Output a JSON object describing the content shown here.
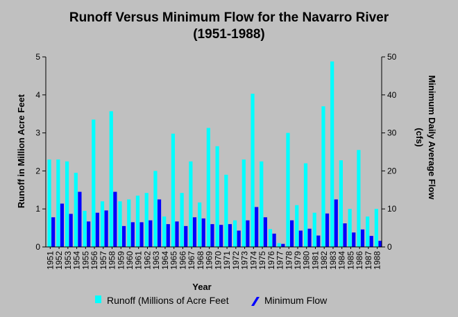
{
  "chart_data": {
    "type": "bar",
    "title_line1": "Runoff Versus Minimum Flow for the Navarro River",
    "title_line2": "(1951-1988)",
    "xlabel": "Year",
    "ylabel_left": "Runoff in Million Acre Feet",
    "ylabel_right_line1": "Minimum Daily Average Flow",
    "ylabel_right_line2": "(cfs)",
    "ylim_left": [
      0,
      5
    ],
    "ylim_right": [
      0,
      50
    ],
    "yticks_left": [
      "0",
      "1",
      "2",
      "3",
      "4",
      "5"
    ],
    "yticks_right": [
      "0",
      "10",
      "20",
      "30",
      "40",
      "50"
    ],
    "grid": false,
    "legend_position": "bottom",
    "categories": [
      "1951",
      "1952",
      "1953",
      "1954",
      "1955",
      "1956",
      "1957",
      "1958",
      "1959",
      "1960",
      "1961",
      "1962",
      "1963",
      "1964",
      "1965",
      "1966",
      "1967",
      "1968",
      "1969",
      "1970",
      "1971",
      "1972",
      "1973",
      "1974",
      "1975",
      "1976",
      "1977",
      "1978",
      "1979",
      "1980",
      "1981",
      "1982",
      "1983",
      "1984",
      "1985",
      "1986",
      "1987",
      "1988"
    ],
    "series": [
      {
        "name": "Runoff (Millions of Acre Feet",
        "axis": "left",
        "color": "#00ffff",
        "values": [
          2.3,
          2.3,
          2.25,
          1.95,
          0.95,
          3.35,
          1.2,
          3.57,
          1.2,
          1.25,
          1.35,
          1.42,
          2.0,
          0.8,
          2.98,
          1.42,
          2.25,
          1.17,
          3.13,
          2.65,
          1.9,
          0.7,
          2.3,
          4.03,
          2.25,
          0.47,
          0.1,
          3.0,
          1.1,
          2.2,
          0.9,
          3.7,
          4.88,
          2.28,
          1.0,
          2.55,
          0.8,
          1.0
        ]
      },
      {
        "name": "Minimum Flow",
        "axis": "right",
        "color": "#0000ff",
        "values": [
          7.8,
          11.4,
          8.7,
          14.5,
          6.7,
          9.0,
          9.6,
          14.5,
          5.5,
          6.5,
          6.5,
          7.0,
          12.5,
          6.0,
          6.7,
          5.5,
          7.8,
          7.5,
          6.0,
          5.8,
          6.0,
          4.3,
          7.0,
          10.5,
          7.8,
          3.5,
          0.8,
          7.0,
          4.3,
          4.8,
          3.0,
          8.8,
          12.5,
          6.2,
          3.8,
          4.6,
          2.9,
          1.6
        ]
      }
    ]
  }
}
